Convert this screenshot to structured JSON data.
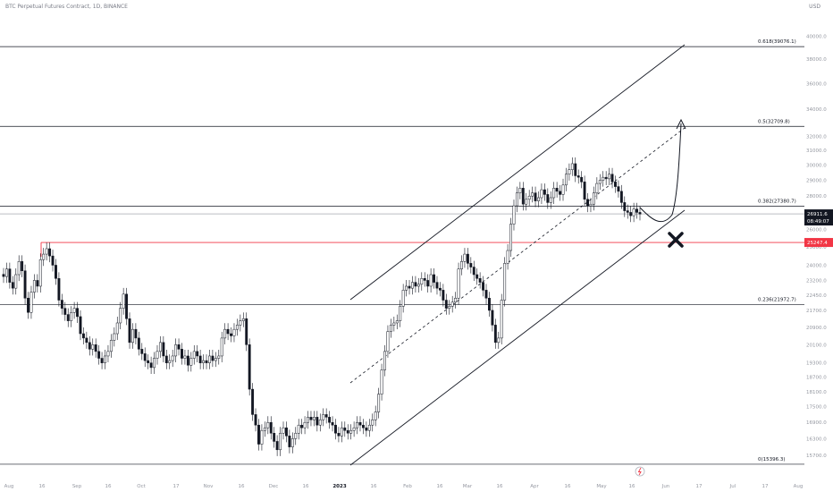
{
  "header": {
    "symbol_line": "BTC Perpetual Futures Contract, 1D, BINANCE",
    "currency": "USD"
  },
  "chart_data": {
    "type": "candlestick",
    "y_scale": "log",
    "ylim": [
      15000,
      41500
    ],
    "y_ticks": [
      "40000.0",
      "38000.0",
      "36000.0",
      "34000.0",
      "32000.0",
      "31000.0",
      "30000.0",
      "29000.0",
      "28000.0",
      "27000.0",
      "26000.0",
      "25000.0",
      "24000.0",
      "23200.0",
      "22450.0",
      "21700.0",
      "20900.0",
      "20100.0",
      "19300.0",
      "18700.0",
      "18100.0",
      "17500.0",
      "16900.0",
      "16300.0",
      "15700.0"
    ],
    "x_labels": [
      "Aug",
      "16",
      "Sep",
      "16",
      "Oct",
      "17",
      "Nov",
      "16",
      "Dec",
      "16",
      "2023",
      "16",
      "Feb",
      "16",
      "Mar",
      "16",
      "Apr",
      "16",
      "May",
      "16",
      "Jun",
      "17",
      "Jul",
      "17",
      "Aug"
    ],
    "fib_levels": [
      {
        "ratio": "0.618",
        "value": 39076.1,
        "label": "0.618(39076.1)"
      },
      {
        "ratio": "0.5",
        "value": 32709.8,
        "label": "0.5(32709.8)"
      },
      {
        "ratio": "0.382",
        "value": 27380.7,
        "label": "0.382(27380.7)"
      },
      {
        "ratio": "0.236",
        "value": 21972.7,
        "label": "0.236(21972.7)"
      },
      {
        "ratio": "0",
        "value": 15396.3,
        "label": "0(15396.3)"
      }
    ],
    "support_line": {
      "value": 25247.4,
      "label": "25247.4",
      "color": "#f23645"
    },
    "last_price": {
      "value": 26911.6,
      "label": "26911.6",
      "countdown": "08:49:07",
      "color": "#131722"
    },
    "candles_close": [
      23400,
      23800,
      23100,
      22800,
      23500,
      24200,
      23700,
      22300,
      21600,
      22600,
      23200,
      22900,
      24300,
      24600,
      24900,
      24500,
      24000,
      23300,
      22200,
      21800,
      21500,
      21200,
      21600,
      21800,
      21400,
      20600,
      20400,
      20200,
      19900,
      20100,
      19800,
      19500,
      19300,
      19600,
      19800,
      20300,
      20600,
      21100,
      21800,
      22500,
      21300,
      20200,
      20800,
      20400,
      19900,
      19700,
      19400,
      19300,
      19100,
      19500,
      19800,
      20200,
      19600,
      19300,
      19400,
      19600,
      20100,
      19900,
      19500,
      19600,
      19200,
      19500,
      19800,
      19600,
      19300,
      19400,
      19300,
      19600,
      19400,
      19500,
      19600,
      20400,
      20800,
      20600,
      20500,
      20800,
      21000,
      21200,
      21300,
      20100,
      18200,
      17200,
      16800,
      16100,
      16600,
      16700,
      16900,
      16500,
      16200,
      15900,
      16500,
      16700,
      16400,
      16000,
      16300,
      16500,
      16800,
      16700,
      16900,
      17100,
      17000,
      17100,
      16800,
      17000,
      17200,
      17100,
      16900,
      16800,
      16500,
      16400,
      16700,
      16600,
      16500,
      16600,
      16700,
      16900,
      16800,
      16700,
      16600,
      16800,
      17000,
      17300,
      18000,
      19000,
      19800,
      20700,
      21000,
      21100,
      21200,
      21900,
      22700,
      22900,
      22800,
      23100,
      22900,
      23000,
      23300,
      23200,
      22900,
      23500,
      23100,
      22800,
      22700,
      22200,
      21800,
      21900,
      22100,
      22300,
      23800,
      24200,
      24600,
      24100,
      23900,
      23500,
      23300,
      23100,
      22700,
      22300,
      21700,
      21000,
      20200,
      20400,
      22200,
      24100,
      24800,
      26300,
      27400,
      28200,
      28500,
      27500,
      27800,
      28000,
      28200,
      27700,
      27900,
      28400,
      28100,
      27600,
      27900,
      28500,
      28300,
      28100,
      28700,
      29400,
      29700,
      30100,
      29300,
      29200,
      28900,
      27800,
      27400,
      27500,
      28200,
      28800,
      29000,
      29200,
      29100,
      29400,
      28900,
      28600,
      28300,
      27600,
      27100,
      27000,
      26800,
      27200,
      27000,
      26900
    ]
  },
  "annotations": {
    "target_arrow": "up-arrow",
    "invalidation_mark": "x-mark"
  }
}
